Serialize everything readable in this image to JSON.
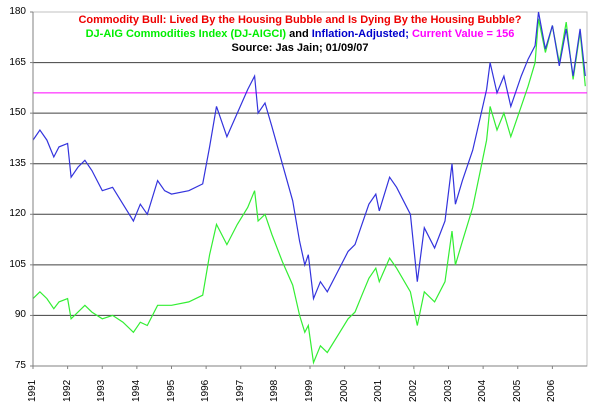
{
  "chart_data": {
    "type": "line",
    "title": "Commodity Bull: Lived By the Housing Bubble and Is Dying By the Housing Bubble?",
    "subtitle_parts": [
      {
        "text": "DJ-AIG Commodities Index (DJ-AIGCI)",
        "color": "#00ee00"
      },
      {
        "text": " and ",
        "color": "#000000"
      },
      {
        "text": "Inflation-Adjusted;",
        "color": "#0000cc"
      },
      {
        "text": " Current Value = 156",
        "color": "#ff00ff"
      }
    ],
    "source": "Source: Jas Jain; 01/09/07",
    "xlabel": "",
    "ylabel": "",
    "ylim": [
      75,
      180
    ],
    "yticks": [
      75,
      90,
      105,
      120,
      135,
      150,
      165,
      180
    ],
    "xlim": [
      1991,
      2007
    ],
    "xticks": [
      "1991",
      "1992",
      "1993",
      "1994",
      "1995",
      "1996",
      "1997",
      "1998",
      "1999",
      "2000",
      "2001",
      "2002",
      "2003",
      "2004",
      "2005",
      "2006"
    ],
    "grid": true,
    "legend": "none (series identified by colored subtitle)",
    "reference_line": {
      "name": "Current Value",
      "value": 156,
      "color": "#ff00ff"
    },
    "series": [
      {
        "name": "Inflation-Adjusted",
        "color": "#3333dd",
        "points": [
          [
            1991.0,
            142
          ],
          [
            1991.2,
            145
          ],
          [
            1991.4,
            142
          ],
          [
            1991.6,
            137
          ],
          [
            1991.75,
            140
          ],
          [
            1992.0,
            141
          ],
          [
            1992.1,
            131
          ],
          [
            1992.3,
            134
          ],
          [
            1992.5,
            136
          ],
          [
            1992.7,
            133
          ],
          [
            1993.0,
            127
          ],
          [
            1993.3,
            128
          ],
          [
            1993.6,
            123
          ],
          [
            1993.9,
            118
          ],
          [
            1994.1,
            123
          ],
          [
            1994.3,
            120
          ],
          [
            1994.6,
            130
          ],
          [
            1994.8,
            127
          ],
          [
            1995.0,
            126
          ],
          [
            1995.5,
            127
          ],
          [
            1995.9,
            129
          ],
          [
            1996.1,
            140
          ],
          [
            1996.3,
            152
          ],
          [
            1996.6,
            143
          ],
          [
            1996.9,
            150
          ],
          [
            1997.2,
            157
          ],
          [
            1997.4,
            161
          ],
          [
            1997.5,
            150
          ],
          [
            1997.7,
            153
          ],
          [
            1997.9,
            146
          ],
          [
            1998.2,
            135
          ],
          [
            1998.5,
            124
          ],
          [
            1998.7,
            112
          ],
          [
            1998.85,
            105
          ],
          [
            1998.95,
            108
          ],
          [
            1999.1,
            95
          ],
          [
            1999.3,
            100
          ],
          [
            1999.5,
            97
          ],
          [
            1999.8,
            103
          ],
          [
            2000.1,
            109
          ],
          [
            2000.3,
            111
          ],
          [
            2000.5,
            117
          ],
          [
            2000.7,
            123
          ],
          [
            2000.9,
            126
          ],
          [
            2001.0,
            121
          ],
          [
            2001.3,
            131
          ],
          [
            2001.5,
            128
          ],
          [
            2001.9,
            120
          ],
          [
            2002.1,
            100
          ],
          [
            2002.3,
            116
          ],
          [
            2002.6,
            110
          ],
          [
            2002.9,
            118
          ],
          [
            2003.1,
            135
          ],
          [
            2003.2,
            123
          ],
          [
            2003.4,
            130
          ],
          [
            2003.7,
            139
          ],
          [
            2003.9,
            148
          ],
          [
            2004.1,
            157
          ],
          [
            2004.2,
            165
          ],
          [
            2004.4,
            156
          ],
          [
            2004.6,
            161
          ],
          [
            2004.8,
            152
          ],
          [
            2005.1,
            161
          ],
          [
            2005.3,
            166
          ],
          [
            2005.5,
            170
          ],
          [
            2005.6,
            180
          ],
          [
            2005.8,
            169
          ],
          [
            2006.0,
            176
          ],
          [
            2006.2,
            164
          ],
          [
            2006.4,
            175
          ],
          [
            2006.6,
            161
          ],
          [
            2006.8,
            175
          ],
          [
            2006.95,
            161
          ]
        ]
      },
      {
        "name": "DJ-AIG Commodities Index (DJ-AIGCI)",
        "color": "#33ee33",
        "points": [
          [
            1991.0,
            95
          ],
          [
            1991.2,
            97
          ],
          [
            1991.4,
            95
          ],
          [
            1991.6,
            92
          ],
          [
            1991.75,
            94
          ],
          [
            1992.0,
            95
          ],
          [
            1992.1,
            89
          ],
          [
            1992.3,
            91
          ],
          [
            1992.5,
            93
          ],
          [
            1992.7,
            91
          ],
          [
            1993.0,
            89
          ],
          [
            1993.3,
            90
          ],
          [
            1993.6,
            88
          ],
          [
            1993.9,
            85
          ],
          [
            1994.1,
            88
          ],
          [
            1994.3,
            87
          ],
          [
            1994.6,
            93
          ],
          [
            1994.8,
            93
          ],
          [
            1995.0,
            93
          ],
          [
            1995.5,
            94
          ],
          [
            1995.9,
            96
          ],
          [
            1996.1,
            108
          ],
          [
            1996.3,
            117
          ],
          [
            1996.6,
            111
          ],
          [
            1996.9,
            117
          ],
          [
            1997.2,
            122
          ],
          [
            1997.4,
            127
          ],
          [
            1997.5,
            118
          ],
          [
            1997.7,
            120
          ],
          [
            1997.9,
            114
          ],
          [
            1998.2,
            106
          ],
          [
            1998.5,
            99
          ],
          [
            1998.7,
            90
          ],
          [
            1998.85,
            85
          ],
          [
            1998.95,
            87
          ],
          [
            1999.1,
            76
          ],
          [
            1999.3,
            81
          ],
          [
            1999.5,
            79
          ],
          [
            1999.8,
            84
          ],
          [
            2000.1,
            89
          ],
          [
            2000.3,
            91
          ],
          [
            2000.5,
            96
          ],
          [
            2000.7,
            101
          ],
          [
            2000.9,
            104
          ],
          [
            2001.0,
            100
          ],
          [
            2001.3,
            107
          ],
          [
            2001.5,
            104
          ],
          [
            2001.9,
            97
          ],
          [
            2002.1,
            87
          ],
          [
            2002.3,
            97
          ],
          [
            2002.6,
            94
          ],
          [
            2002.9,
            100
          ],
          [
            2003.1,
            115
          ],
          [
            2003.2,
            105
          ],
          [
            2003.4,
            112
          ],
          [
            2003.7,
            122
          ],
          [
            2003.9,
            132
          ],
          [
            2004.1,
            142
          ],
          [
            2004.2,
            152
          ],
          [
            2004.4,
            145
          ],
          [
            2004.6,
            150
          ],
          [
            2004.8,
            143
          ],
          [
            2005.1,
            152
          ],
          [
            2005.3,
            158
          ],
          [
            2005.5,
            165
          ],
          [
            2005.6,
            178
          ],
          [
            2005.8,
            168
          ],
          [
            2006.0,
            176
          ],
          [
            2006.2,
            165
          ],
          [
            2006.4,
            177
          ],
          [
            2006.6,
            160
          ],
          [
            2006.8,
            174
          ],
          [
            2006.95,
            158
          ]
        ]
      }
    ]
  }
}
